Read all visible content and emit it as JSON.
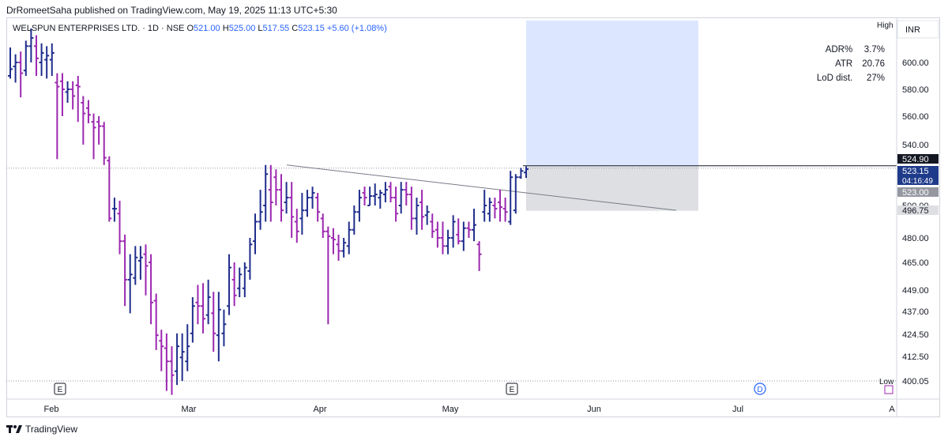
{
  "header": {
    "published_text": "DrRomeetSaha published on TradingView.com, May 19, 2025 11:13 UTC+5:30"
  },
  "legend": {
    "symbol": "WELSPUN ENTERPRISES LTD. · 1D · NSE",
    "open_label": "O",
    "open": "521.00",
    "high_label": "H",
    "high": "525.00",
    "low_label": "L",
    "low": "517.55",
    "close_label": "C",
    "close": "523.15",
    "change": "+5.60 (+1.08%)"
  },
  "stats": {
    "adr_label": "ADR%",
    "adr_value": "3.7%",
    "atr_label": "ATR",
    "atr_value": "20.76",
    "lod_label": "LoD dist.",
    "lod_value": "27%"
  },
  "footer": {
    "brand": "TradingView"
  },
  "colors": {
    "up": "#1f2e8c",
    "down": "#9c27b0",
    "box_top": "#dce6ff",
    "box_bottom": "#dedfe2"
  },
  "chart_data": {
    "type": "ohlc",
    "currency_label": "INR",
    "high_label": "High",
    "low_label": "Low",
    "x_ticks": [
      "Feb",
      "Mar",
      "Apr",
      "May",
      "Jun",
      "Jul",
      "A"
    ],
    "y_ticks": [
      600.0,
      580.0,
      560.0,
      540.0,
      500.0,
      480.0,
      465.0,
      449.0,
      437.0,
      424.5,
      412.5,
      400.05
    ],
    "y_tick_labels": [
      "600.00",
      "580.00",
      "560.00",
      "540.00",
      "500.00",
      "480.00",
      "465.00",
      "449.00",
      "437.00",
      "424.50",
      "412.50",
      "400.05"
    ],
    "price_tags": [
      {
        "label": "524.90",
        "style": "dark"
      },
      {
        "label": "523.15",
        "sub": "04:16:49",
        "style": "blue"
      },
      {
        "label": "523.00",
        "style": "grey"
      },
      {
        "label": "496.75",
        "style": "light"
      }
    ],
    "candles": [
      {
        "o": 590,
        "h": 611,
        "l": 588,
        "c": 595
      },
      {
        "o": 597,
        "h": 606,
        "l": 585,
        "c": 600
      },
      {
        "o": 600,
        "h": 608,
        "l": 574,
        "c": 592
      },
      {
        "o": 594,
        "h": 616,
        "l": 590,
        "c": 612
      },
      {
        "o": 612,
        "h": 625,
        "l": 600,
        "c": 618
      },
      {
        "o": 612,
        "h": 620,
        "l": 590,
        "c": 603
      },
      {
        "o": 600,
        "h": 614,
        "l": 590,
        "c": 607
      },
      {
        "o": 602,
        "h": 612,
        "l": 588,
        "c": 605
      },
      {
        "o": 602,
        "h": 614,
        "l": 590,
        "c": 607
      },
      {
        "o": 585,
        "h": 592,
        "l": 530,
        "c": 582
      },
      {
        "o": 586,
        "h": 592,
        "l": 560,
        "c": 580
      },
      {
        "o": 578,
        "h": 586,
        "l": 570,
        "c": 580
      },
      {
        "o": 580,
        "h": 586,
        "l": 565,
        "c": 575
      },
      {
        "o": 583,
        "h": 590,
        "l": 556,
        "c": 582
      },
      {
        "o": 570,
        "h": 575,
        "l": 540,
        "c": 562
      },
      {
        "o": 566,
        "h": 572,
        "l": 555,
        "c": 561
      },
      {
        "o": 556,
        "h": 562,
        "l": 530,
        "c": 552
      },
      {
        "o": 556,
        "h": 560,
        "l": 540,
        "c": 553
      },
      {
        "o": 553,
        "h": 556,
        "l": 526,
        "c": 531
      },
      {
        "o": 529,
        "h": 532,
        "l": 490,
        "c": 492
      },
      {
        "o": 498,
        "h": 505,
        "l": 490,
        "c": 498
      },
      {
        "o": 495,
        "h": 503,
        "l": 470,
        "c": 478
      },
      {
        "o": 478,
        "h": 482,
        "l": 440,
        "c": 455
      },
      {
        "o": 455,
        "h": 470,
        "l": 436,
        "c": 458
      },
      {
        "o": 456,
        "h": 475,
        "l": 452,
        "c": 468
      },
      {
        "o": 466,
        "h": 475,
        "l": 455,
        "c": 468
      },
      {
        "o": 470,
        "h": 476,
        "l": 446,
        "c": 463
      },
      {
        "o": 465,
        "h": 470,
        "l": 430,
        "c": 442
      },
      {
        "o": 443,
        "h": 447,
        "l": 416,
        "c": 424
      },
      {
        "o": 421,
        "h": 427,
        "l": 405,
        "c": 418
      },
      {
        "o": 417,
        "h": 425,
        "l": 395,
        "c": 410
      },
      {
        "o": 410,
        "h": 418,
        "l": 393,
        "c": 403
      },
      {
        "o": 405,
        "h": 425,
        "l": 398,
        "c": 418
      },
      {
        "o": 412,
        "h": 425,
        "l": 400,
        "c": 415
      },
      {
        "o": 410,
        "h": 430,
        "l": 405,
        "c": 418
      },
      {
        "o": 425,
        "h": 445,
        "l": 420,
        "c": 440
      },
      {
        "o": 442,
        "h": 452,
        "l": 430,
        "c": 440
      },
      {
        "o": 440,
        "h": 453,
        "l": 425,
        "c": 433
      },
      {
        "o": 435,
        "h": 455,
        "l": 430,
        "c": 445
      },
      {
        "o": 436,
        "h": 448,
        "l": 415,
        "c": 425
      },
      {
        "o": 424,
        "h": 448,
        "l": 410,
        "c": 438
      },
      {
        "o": 425,
        "h": 438,
        "l": 418,
        "c": 430
      },
      {
        "o": 440,
        "h": 470,
        "l": 435,
        "c": 462
      },
      {
        "o": 455,
        "h": 465,
        "l": 440,
        "c": 446
      },
      {
        "o": 450,
        "h": 462,
        "l": 445,
        "c": 458
      },
      {
        "o": 450,
        "h": 465,
        "l": 445,
        "c": 462
      },
      {
        "o": 460,
        "h": 480,
        "l": 455,
        "c": 476
      },
      {
        "o": 478,
        "h": 495,
        "l": 470,
        "c": 490
      },
      {
        "o": 490,
        "h": 510,
        "l": 485,
        "c": 496
      },
      {
        "o": 500,
        "h": 526,
        "l": 490,
        "c": 520
      },
      {
        "o": 510,
        "h": 526,
        "l": 490,
        "c": 502
      },
      {
        "o": 518,
        "h": 523,
        "l": 500,
        "c": 510
      },
      {
        "o": 510,
        "h": 520,
        "l": 490,
        "c": 497
      },
      {
        "o": 502,
        "h": 515,
        "l": 495,
        "c": 505
      },
      {
        "o": 505,
        "h": 515,
        "l": 480,
        "c": 493
      },
      {
        "o": 490,
        "h": 498,
        "l": 477,
        "c": 484
      },
      {
        "o": 492,
        "h": 508,
        "l": 482,
        "c": 497
      },
      {
        "o": 497,
        "h": 510,
        "l": 493,
        "c": 505
      },
      {
        "o": 505,
        "h": 512,
        "l": 498,
        "c": 508
      },
      {
        "o": 505,
        "h": 508,
        "l": 490,
        "c": 496
      },
      {
        "o": 492,
        "h": 495,
        "l": 480,
        "c": 484
      },
      {
        "o": 484,
        "h": 487,
        "l": 430,
        "c": 481
      },
      {
        "o": 480,
        "h": 486,
        "l": 470,
        "c": 479
      },
      {
        "o": 476,
        "h": 482,
        "l": 466,
        "c": 472
      },
      {
        "o": 472,
        "h": 480,
        "l": 468,
        "c": 477
      },
      {
        "o": 475,
        "h": 490,
        "l": 470,
        "c": 485
      },
      {
        "o": 485,
        "h": 500,
        "l": 482,
        "c": 496
      },
      {
        "o": 496,
        "h": 510,
        "l": 490,
        "c": 505
      },
      {
        "o": 508,
        "h": 512,
        "l": 500,
        "c": 505
      },
      {
        "o": 500,
        "h": 512,
        "l": 500,
        "c": 506
      },
      {
        "o": 506,
        "h": 514,
        "l": 500,
        "c": 507
      },
      {
        "o": 505,
        "h": 510,
        "l": 498,
        "c": 508
      },
      {
        "o": 507,
        "h": 515,
        "l": 502,
        "c": 510
      },
      {
        "o": 512,
        "h": 515,
        "l": 502,
        "c": 505
      },
      {
        "o": 505,
        "h": 512,
        "l": 490,
        "c": 495
      },
      {
        "o": 500,
        "h": 515,
        "l": 495,
        "c": 510
      },
      {
        "o": 510,
        "h": 515,
        "l": 500,
        "c": 507
      },
      {
        "o": 507,
        "h": 512,
        "l": 485,
        "c": 492
      },
      {
        "o": 492,
        "h": 505,
        "l": 482,
        "c": 500
      },
      {
        "o": 502,
        "h": 510,
        "l": 485,
        "c": 493
      },
      {
        "o": 494,
        "h": 500,
        "l": 488,
        "c": 496
      },
      {
        "o": 490,
        "h": 495,
        "l": 480,
        "c": 484
      },
      {
        "o": 485,
        "h": 490,
        "l": 474,
        "c": 480
      },
      {
        "o": 480,
        "h": 490,
        "l": 470,
        "c": 475
      },
      {
        "o": 475,
        "h": 485,
        "l": 470,
        "c": 480
      },
      {
        "o": 480,
        "h": 494,
        "l": 474,
        "c": 490
      },
      {
        "o": 482,
        "h": 492,
        "l": 476,
        "c": 478
      },
      {
        "o": 478,
        "h": 490,
        "l": 472,
        "c": 486
      },
      {
        "o": 486,
        "h": 490,
        "l": 480,
        "c": 485
      },
      {
        "o": 485,
        "h": 498,
        "l": 478,
        "c": 488
      },
      {
        "o": 476,
        "h": 478,
        "l": 460,
        "c": 470
      },
      {
        "o": 496,
        "h": 510,
        "l": 490,
        "c": 500
      },
      {
        "o": 495,
        "h": 505,
        "l": 490,
        "c": 502
      },
      {
        "o": 500,
        "h": 505,
        "l": 492,
        "c": 498
      },
      {
        "o": 502,
        "h": 510,
        "l": 490,
        "c": 499
      },
      {
        "o": 498,
        "h": 505,
        "l": 490,
        "c": 496
      },
      {
        "o": 490,
        "h": 522,
        "l": 488,
        "c": 518
      },
      {
        "o": 497,
        "h": 520,
        "l": 495,
        "c": 518
      },
      {
        "o": 518,
        "h": 524,
        "l": 517,
        "c": 522
      },
      {
        "o": 521,
        "h": 525,
        "l": 517.55,
        "c": 523.15
      }
    ],
    "trendline_label": "",
    "events": [
      "E",
      "E",
      "D"
    ]
  }
}
